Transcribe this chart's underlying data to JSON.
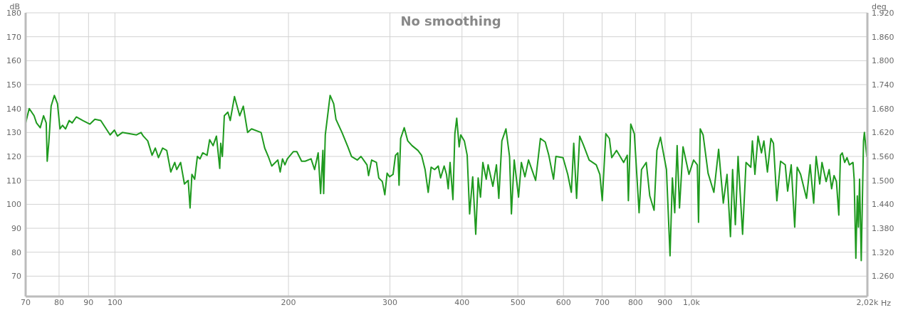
{
  "chart_data": {
    "type": "line",
    "title": "No smoothing",
    "xlabel": "Hz",
    "ylabel": "dB",
    "y2label": "deg",
    "log": "x",
    "grid": true,
    "line_style": "solid",
    "x": [
      70,
      71,
      72.4,
      73.1,
      74.2,
      75.2,
      76,
      76.3,
      76.8,
      77.5,
      78.5,
      79.5,
      80.3,
      81.1,
      82.1,
      83.3,
      84.3,
      85.7,
      88,
      90.5,
      92.3,
      94.5,
      98.1,
      99.8,
      101,
      103,
      109,
      111,
      112,
      114,
      116,
      117.5,
      119,
      121,
      123,
      125,
      127,
      128,
      130,
      132,
      134,
      135,
      136,
      137.5,
      139,
      140.5,
      142,
      144.5,
      146,
      148,
      150,
      152,
      152.6,
      153.6,
      154.8,
      157,
      158.5,
      161.2,
      164.6,
      167,
      169.9,
      172.6,
      179.3,
      181.9,
      184.5,
      187.1,
      191.7,
      193.5,
      195.3,
      197.2,
      199.1,
      203.9,
      206.8,
      210.8,
      213.8,
      218.9,
      222,
      225.2,
      227.4,
      229.5,
      230.2,
      231.7,
      236.2,
      239.6,
      241.8,
      247.7,
      253.6,
      257.3,
      263.4,
      267.2,
      273.7,
      275.4,
      278.8,
      284.2,
      286.9,
      291,
      293.9,
      296.6,
      299.5,
      303.7,
      306.7,
      309.6,
      311.1,
      313.1,
      317.6,
      322.1,
      327.7,
      335.5,
      340.3,
      345.2,
      349.5,
      353.6,
      358.6,
      363.8,
      367.3,
      372.5,
      376,
      378.6,
      381.4,
      385.8,
      388.8,
      391.7,
      395.5,
      398.1,
      403.8,
      408.4,
      412.4,
      417.5,
      422.6,
      426.7,
      430.7,
      434.8,
      440.7,
      444,
      452.5,
      459,
      463.4,
      469.1,
      476.8,
      483.7,
      487.3,
      492.8,
      501.4,
      507.1,
      514.4,
      521.8,
      536.8,
      547.2,
      557.8,
      565.8,
      576.6,
      582.1,
      598.9,
      610.3,
      619.1,
      625.1,
      632.2,
      640.1,
      649.2,
      664.8,
      683.9,
      693.8,
      700.5,
      710.6,
      720.7,
      727.5,
      741.6,
      763,
      774,
      777.5,
      785,
      796.3,
      811.5,
      819.4,
      835,
      846.9,
      861.6,
      871.4,
      883.9,
      905.3,
      918.3,
      926.9,
      935.7,
      944.7,
      953.7,
      967.2,
      990.4,
      1009,
      1024,
      1029,
      1036,
      1048,
      1069,
      1094,
      1115,
      1136,
      1153,
      1169,
      1179,
      1192,
      1205,
      1227,
      1244,
      1268,
      1276,
      1289,
      1305,
      1323,
      1336,
      1355,
      1374,
      1388,
      1407,
      1428,
      1455,
      1469,
      1490,
      1511,
      1526,
      1547,
      1584,
      1607,
      1630,
      1646,
      1670,
      1685,
      1713,
      1734,
      1751,
      1768,
      1785,
      1802,
      1814,
      1827,
      1845,
      1862,
      1880,
      1907,
      1916,
      1929,
      1940,
      1949,
      1958,
      1971,
      1989,
      1996,
      2015
    ],
    "series": [
      {
        "color": "#1f9a1f",
        "values": [
          134,
          140,
          137,
          134,
          132,
          137,
          134,
          118,
          126,
          141,
          145.5,
          142,
          131.5,
          133,
          131.5,
          135,
          134,
          136.5,
          135,
          133.5,
          135.5,
          135,
          129,
          131,
          128.5,
          130,
          129,
          130,
          128.5,
          126.5,
          120.5,
          123.5,
          119.5,
          123.5,
          122.5,
          113.5,
          117.5,
          114.5,
          117.5,
          108.5,
          110,
          98.5,
          112.5,
          110.5,
          120,
          119,
          121.5,
          120.5,
          127,
          124.5,
          128.5,
          115,
          125.5,
          120,
          137,
          138.5,
          135,
          145,
          137,
          141,
          130,
          131.5,
          130,
          123.5,
          120,
          116,
          118.5,
          113.5,
          119,
          116.5,
          119,
          122,
          122,
          118,
          118,
          119,
          114.5,
          121.5,
          104.5,
          122.5,
          104.5,
          129,
          145.5,
          142,
          135.5,
          130,
          124,
          120,
          118.5,
          120,
          116.5,
          112,
          118.5,
          117.5,
          111,
          109.5,
          104,
          113,
          111.5,
          112.5,
          120.5,
          121.5,
          108,
          127.5,
          132,
          126.5,
          124.5,
          122.5,
          120.5,
          114.5,
          105,
          115.5,
          114.5,
          116,
          111,
          116,
          112.5,
          106.5,
          117.5,
          102,
          129.5,
          136,
          124,
          129,
          126.5,
          120.5,
          96,
          111.5,
          87.5,
          111,
          103,
          117.5,
          110.5,
          116.5,
          107.5,
          116.5,
          102.5,
          126.5,
          131.5,
          120,
          96,
          118.5,
          103,
          117.5,
          111.5,
          118.5,
          110,
          127.5,
          126,
          120.5,
          110.5,
          120,
          119.5,
          112.5,
          105,
          125.5,
          102.5,
          128.5,
          125,
          118.5,
          116.5,
          112.5,
          101.5,
          129.5,
          127.5,
          119.5,
          122.5,
          117.5,
          120.5,
          101.5,
          133.5,
          129.5,
          96.5,
          114.5,
          117.5,
          103.5,
          97.5,
          122.5,
          128,
          114.5,
          78.5,
          111,
          96.5,
          124.5,
          98.5,
          124,
          112.5,
          118.5,
          116.5,
          92.5,
          131.5,
          129,
          113,
          105,
          123,
          100.5,
          112.5,
          86.5,
          114.5,
          91.5,
          120,
          87.5,
          117.5,
          115.5,
          126.5,
          112.5,
          128.5,
          121.5,
          126.5,
          113.5,
          127.5,
          125.5,
          101.5,
          118,
          116.5,
          105.5,
          116.5,
          90.5,
          115.5,
          112.5,
          102.5,
          116.5,
          100.5,
          120,
          108.5,
          117.5,
          109.5,
          114.5,
          106.5,
          112,
          109.5,
          95.5,
          120.5,
          121.5,
          117.5,
          119.5,
          116.5,
          117.5,
          110.5,
          77.5,
          103.5,
          90.5,
          110.5,
          76.5,
          126.5,
          130,
          120
        ]
      }
    ],
    "xlim": [
      70,
      2020
    ],
    "xticks": [
      70,
      80,
      90,
      100,
      200,
      300,
      400,
      500,
      600,
      700,
      800,
      900,
      {
        "value": 1000,
        "label": "1,0k"
      },
      {
        "value": 2020,
        "label": "2,02k"
      }
    ],
    "ylim": [
      61.5,
      180
    ],
    "yticks": [
      70,
      80,
      90,
      100,
      110,
      120,
      130,
      140,
      150,
      160,
      170,
      180
    ],
    "y2lim": [
      1209,
      1920
    ],
    "y2ticks": [
      {
        "value": 1260,
        "label": "1.260"
      },
      {
        "value": 1320,
        "label": "1.320"
      },
      {
        "value": 1380,
        "label": "1.380"
      },
      {
        "value": 1440,
        "label": "1.440"
      },
      {
        "value": 1500,
        "label": "1.500"
      },
      {
        "value": 1560,
        "label": "1.560"
      },
      {
        "value": 1620,
        "label": "1.620"
      },
      {
        "value": 1680,
        "label": "1.680"
      },
      {
        "value": 1740,
        "label": "1.740"
      },
      {
        "value": 1800,
        "label": "1.800"
      },
      {
        "value": 1860,
        "label": "1.860"
      },
      {
        "value": 1920,
        "label": "1.920"
      }
    ]
  }
}
